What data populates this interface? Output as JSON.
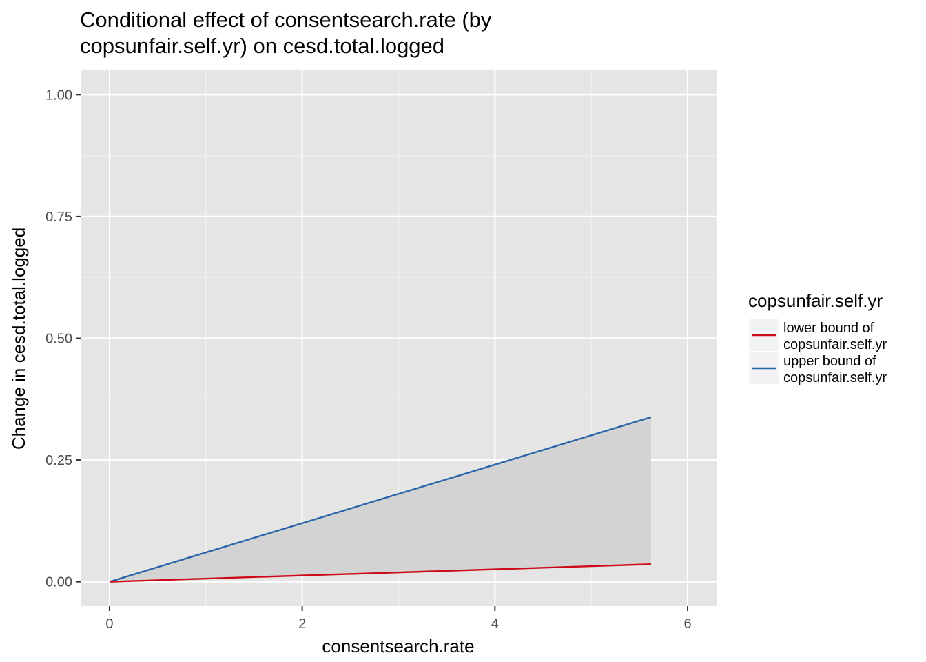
{
  "chart_data": {
    "type": "line",
    "title_lines": [
      "Conditional effect of consentsearch.rate (by",
      "copsunfair.self.yr) on cesd.total.logged"
    ],
    "xlabel": "consentsearch.rate",
    "ylabel": "Change in cesd.total.logged",
    "xlim": [
      -0.3,
      6.3
    ],
    "ylim": [
      -0.05,
      1.05
    ],
    "x_ticks": [
      0,
      2,
      4,
      6
    ],
    "x_tick_labels": [
      "0",
      "2",
      "4",
      "6"
    ],
    "y_ticks": [
      0,
      0.25,
      0.5,
      0.75,
      1.0
    ],
    "y_tick_labels": [
      "0.00",
      "0.25",
      "0.50",
      "0.75",
      "1.00"
    ],
    "grid": true,
    "background": "#e5e5e5",
    "ribbon_fill": "#d3d3d3",
    "legend": {
      "title": "copsunfair.self.yr",
      "placement": "right"
    },
    "series": [
      {
        "key": "lower",
        "label_lines": [
          "lower bound of",
          "copsunfair.self.yr"
        ],
        "color": "#cc0a19",
        "x": [
          0,
          5.62
        ],
        "y": [
          0,
          0.036
        ]
      },
      {
        "key": "upper",
        "label_lines": [
          "upper bound of",
          "copsunfair.self.yr"
        ],
        "color": "#2c66a9",
        "x": [
          0,
          5.62
        ],
        "y": [
          0,
          0.338
        ]
      }
    ]
  }
}
